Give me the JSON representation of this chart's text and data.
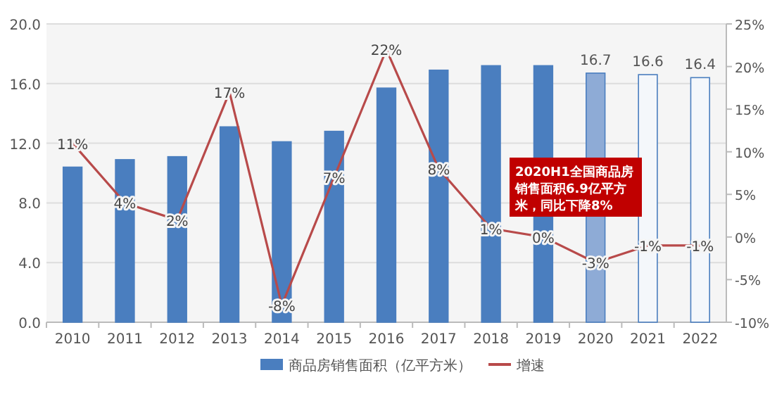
{
  "chart_data": {
    "type": "bar",
    "categories": [
      "2010",
      "2011",
      "2012",
      "2013",
      "2014",
      "2015",
      "2016",
      "2017",
      "2018",
      "2019",
      "2020",
      "2021",
      "2022"
    ],
    "series": [
      {
        "name": "商品房销售面积（亿平方米）",
        "color": "#4a7ebf",
        "colors": [
          "#4a7ebf",
          "#4a7ebf",
          "#4a7ebf",
          "#4a7ebf",
          "#4a7ebf",
          "#4a7ebf",
          "#4a7ebf",
          "#4a7ebf",
          "#4a7ebf",
          "#4a7ebf",
          "#8eabd6",
          "#f4f7fb",
          "#f4f7fb"
        ],
        "values": [
          10.4,
          10.9,
          11.1,
          13.1,
          12.1,
          12.8,
          15.7,
          16.9,
          17.2,
          17.2,
          16.7,
          16.6,
          16.4
        ],
        "value_labels": [
          null,
          null,
          null,
          null,
          null,
          null,
          null,
          null,
          null,
          null,
          "16.7",
          "16.6",
          "16.4"
        ]
      },
      {
        "name": "增速",
        "type": "line",
        "axis": "y2",
        "color": "#b84a4a",
        "values": [
          11,
          4,
          2,
          17,
          -8,
          7,
          22,
          8,
          1,
          0,
          -3,
          -1,
          -1
        ],
        "value_labels": [
          "11%",
          "4%",
          "2%",
          "17%",
          "-8%",
          "7%",
          "22%",
          "8%",
          "1%",
          "0%",
          "-3%",
          "-1%",
          "-1%"
        ]
      }
    ],
    "ylim": [
      0,
      20
    ],
    "yticks": [
      {
        "value": 0,
        "label": "0.0"
      },
      {
        "value": 4,
        "label": "4.0"
      },
      {
        "value": 8,
        "label": "8.0"
      },
      {
        "value": 12,
        "label": "12.0"
      },
      {
        "value": 16,
        "label": "16.0"
      },
      {
        "value": 20,
        "label": "20.0"
      }
    ],
    "y2lim": [
      -10,
      25
    ],
    "y2ticks": [
      {
        "value": -10,
        "label": "-10%"
      },
      {
        "value": -5,
        "label": "-5%"
      },
      {
        "value": 0,
        "label": "0%"
      },
      {
        "value": 5,
        "label": "5%"
      },
      {
        "value": 10,
        "label": "10%"
      },
      {
        "value": 15,
        "label": "15%"
      },
      {
        "value": 20,
        "label": "20%"
      },
      {
        "value": 25,
        "label": "25%"
      }
    ],
    "annotations": [
      "2020H1全国商品房销售面积6.9亿平方米，同比下降8%"
    ],
    "grid": "y",
    "legend": "bottom",
    "marker": "none"
  }
}
